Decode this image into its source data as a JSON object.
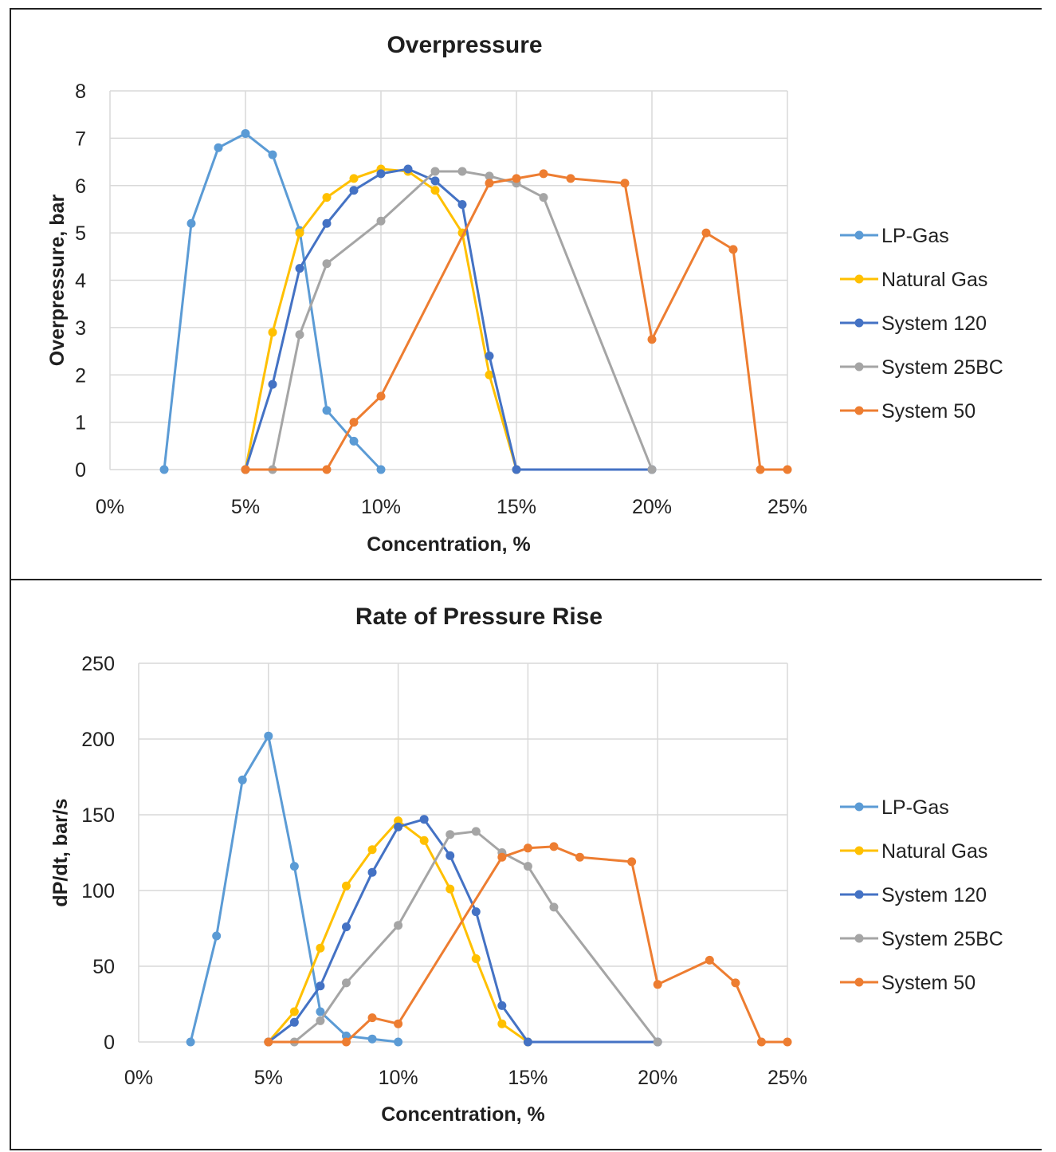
{
  "chart_data": [
    {
      "type": "line",
      "title": "Overpressure",
      "xlabel": "Concentration, %",
      "ylabel": "Overpressure, bar",
      "xlim": [
        0,
        25
      ],
      "ylim": [
        0,
        8
      ],
      "xticks": [
        0,
        5,
        10,
        15,
        20,
        25
      ],
      "xtick_labels": [
        "0%",
        "5%",
        "10%",
        "15%",
        "20%",
        "25%"
      ],
      "yticks": [
        0,
        1,
        2,
        3,
        4,
        5,
        6,
        7,
        8
      ],
      "ytick_labels": [
        "0",
        "1",
        "2",
        "3",
        "4",
        "5",
        "6",
        "7",
        "8"
      ],
      "grid": true,
      "legend": "right",
      "series": [
        {
          "name": "LP-Gas",
          "color": "#5b9bd5",
          "x": [
            2,
            3,
            4,
            5,
            6,
            7,
            8,
            9,
            10
          ],
          "y": [
            0,
            5.2,
            6.8,
            7.1,
            6.65,
            5.05,
            1.25,
            0.6,
            0
          ]
        },
        {
          "name": "Natural Gas",
          "color": "#ffc000",
          "x": [
            5,
            6,
            7,
            8,
            9,
            10,
            11,
            12,
            13,
            14,
            15
          ],
          "y": [
            0,
            2.9,
            5.0,
            5.75,
            6.15,
            6.35,
            6.3,
            5.9,
            5.0,
            2.0,
            0
          ]
        },
        {
          "name": "System 120",
          "color": "#4472c4",
          "x": [
            5,
            6,
            7,
            8,
            9,
            10,
            11,
            12,
            13,
            14,
            15,
            20
          ],
          "y": [
            0,
            1.8,
            4.25,
            5.2,
            5.9,
            6.25,
            6.35,
            6.1,
            5.6,
            2.4,
            0,
            0
          ]
        },
        {
          "name": "System 25BC",
          "color": "#a5a5a5",
          "x": [
            6,
            7,
            8,
            10,
            12,
            13,
            14,
            15,
            16,
            20
          ],
          "y": [
            0,
            2.85,
            4.35,
            5.25,
            6.3,
            6.3,
            6.2,
            6.05,
            5.75,
            0
          ]
        },
        {
          "name": "System 50",
          "color": "#ed7d31",
          "x": [
            5,
            8,
            9,
            10,
            14,
            15,
            16,
            17,
            19,
            20,
            22,
            23,
            24,
            25
          ],
          "y": [
            0,
            0,
            1.0,
            1.55,
            6.05,
            6.15,
            6.25,
            6.15,
            6.05,
            2.75,
            5.0,
            4.65,
            0,
            0
          ]
        }
      ]
    },
    {
      "type": "line",
      "title": "Rate of Pressure Rise",
      "xlabel": "Concentration, %",
      "ylabel": "dP/dt, bar/s",
      "xlim": [
        0,
        25
      ],
      "ylim": [
        0,
        250
      ],
      "xticks": [
        0,
        5,
        10,
        15,
        20,
        25
      ],
      "xtick_labels": [
        "0%",
        "5%",
        "10%",
        "15%",
        "20%",
        "25%"
      ],
      "yticks": [
        0,
        50,
        100,
        150,
        200,
        250
      ],
      "ytick_labels": [
        "0",
        "50",
        "100",
        "150",
        "200",
        "250"
      ],
      "grid": true,
      "legend": "right",
      "series": [
        {
          "name": "LP-Gas",
          "color": "#5b9bd5",
          "x": [
            2,
            3,
            4,
            5,
            6,
            7,
            8,
            9,
            10
          ],
          "y": [
            0,
            70,
            173,
            202,
            116,
            20,
            4,
            2,
            0
          ]
        },
        {
          "name": "Natural Gas",
          "color": "#ffc000",
          "x": [
            5,
            6,
            7,
            8,
            9,
            10,
            11,
            12,
            13,
            14,
            15
          ],
          "y": [
            0,
            20,
            62,
            103,
            127,
            146,
            133,
            101,
            55,
            12,
            0
          ]
        },
        {
          "name": "System 120",
          "color": "#4472c4",
          "x": [
            5,
            6,
            7,
            8,
            9,
            10,
            11,
            12,
            13,
            14,
            15,
            20
          ],
          "y": [
            0,
            13,
            37,
            76,
            112,
            142,
            147,
            123,
            86,
            24,
            0,
            0
          ]
        },
        {
          "name": "System 25BC",
          "color": "#a5a5a5",
          "x": [
            6,
            7,
            8,
            10,
            12,
            13,
            14,
            15,
            16,
            20
          ],
          "y": [
            0,
            14,
            39,
            77,
            137,
            139,
            125,
            116,
            89,
            0
          ]
        },
        {
          "name": "System 50",
          "color": "#ed7d31",
          "x": [
            5,
            8,
            9,
            10,
            14,
            15,
            16,
            17,
            19,
            20,
            22,
            23,
            24,
            25
          ],
          "y": [
            0,
            0,
            16,
            12,
            122,
            128,
            129,
            122,
            119,
            38,
            54,
            39,
            0,
            0
          ]
        }
      ]
    }
  ]
}
